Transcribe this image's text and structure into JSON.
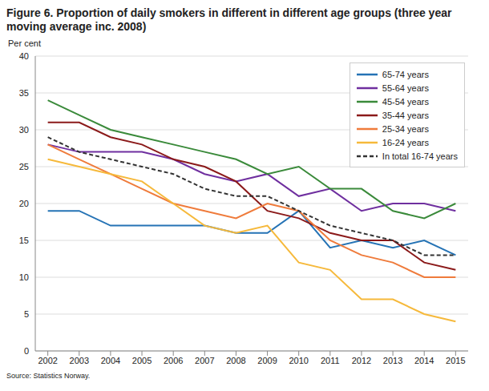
{
  "chart_data": {
    "type": "line",
    "title": "Figure 6. Proportion of daily smokers in different in different age groups (three year moving average inc. 2008)",
    "y_label": "Per cent",
    "source": "Source: Statistics Norway.",
    "x": [
      2002,
      2003,
      2004,
      2005,
      2006,
      2007,
      2008,
      2009,
      2010,
      2011,
      2012,
      2013,
      2014,
      2015
    ],
    "xlim": [
      2001.6,
      2015.4
    ],
    "xticks": [
      2002,
      2003,
      2004,
      2005,
      2006,
      2007,
      2008,
      2009,
      2010,
      2011,
      2012,
      2013,
      2014,
      2015
    ],
    "ylim": [
      0,
      40
    ],
    "yticks": [
      0,
      5,
      10,
      15,
      20,
      25,
      30,
      35,
      40
    ],
    "grid": true,
    "legend": "upper right",
    "series": [
      {
        "name": "65-74 years",
        "color": "#2573b5",
        "values": [
          19,
          19,
          17,
          17,
          17,
          17,
          16,
          16,
          19,
          14,
          15,
          14,
          15,
          13
        ]
      },
      {
        "name": "55-64 years",
        "color": "#6f2f9f",
        "values": [
          28,
          27,
          27,
          27,
          26,
          24,
          23,
          24,
          21,
          22,
          19,
          20,
          20,
          19
        ]
      },
      {
        "name": "45-54 years",
        "color": "#3a8a3a",
        "values": [
          34,
          32,
          30,
          29,
          28,
          27,
          26,
          24,
          25,
          22,
          22,
          19,
          18,
          20
        ]
      },
      {
        "name": "35-44 years",
        "color": "#8b1a1a",
        "values": [
          31,
          31,
          29,
          28,
          26,
          25,
          23,
          19,
          18,
          16,
          15,
          15,
          12,
          11
        ]
      },
      {
        "name": "25-34 years",
        "color": "#ef7b3b",
        "values": [
          28,
          26,
          24,
          22,
          20,
          19,
          18,
          20,
          19,
          15,
          13,
          12,
          10,
          10
        ]
      },
      {
        "name": "16-24 years",
        "color": "#f6b93b",
        "values": [
          26,
          25,
          24,
          23,
          20,
          17,
          16,
          17,
          12,
          11,
          7,
          7,
          5,
          4
        ]
      },
      {
        "name": "In total 16-74 years",
        "color": "#333333",
        "line_style": "dashed",
        "values": [
          29,
          27,
          26,
          25,
          24,
          22,
          21,
          21,
          19,
          17,
          16,
          15,
          13,
          13
        ]
      }
    ]
  }
}
